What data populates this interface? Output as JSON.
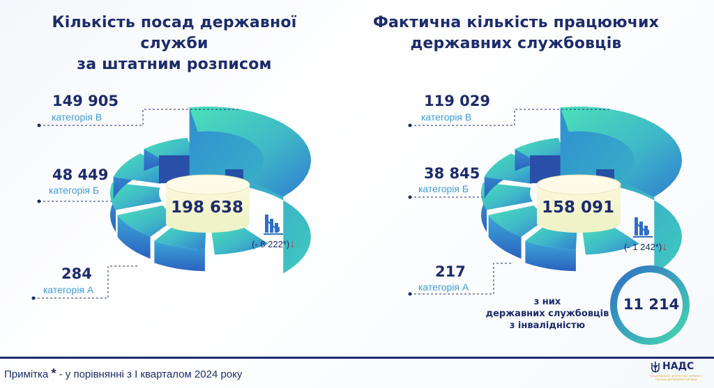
{
  "left": {
    "title_line1": "Кількість посад державної служби",
    "title_line2": "за штатним розписом",
    "total": "198 638",
    "change": "(- 8 222*)",
    "categories": [
      {
        "value": "149 905",
        "label": "категорія В"
      },
      {
        "value": "48 449",
        "label": "категорія Б"
      },
      {
        "value": "284",
        "label": "категорія А"
      }
    ]
  },
  "right": {
    "title_line1": "Фактична кількість працюючих",
    "title_line2": "державних службовців",
    "total": "158 091",
    "change": "(- 1 242*)",
    "categories": [
      {
        "value": "119 029",
        "label": "категорія В"
      },
      {
        "value": "38 845",
        "label": "категорія Б"
      },
      {
        "value": "217",
        "label": "категорія А"
      }
    ],
    "disability_text_line1": "з них",
    "disability_text_line2": "державних службовців",
    "disability_text_line3": "з інвалідністю",
    "disability_value": "11 214"
  },
  "footer": {
    "note_prefix": "Примітка",
    "note_star": "*",
    "note_text": " - у порівнянні з І кварталом 2024 року",
    "logo_name": "НАДС",
    "logo_sub": "НАЦІОНАЛЬНЕ АГЕНТСТВО УКРАЇНИ З ПИТАНЬ ДЕРЖАВНОЇ СЛУЖБИ"
  },
  "colors": {
    "navy": "#1c2b6b",
    "teal": "#36d6b4",
    "blue": "#2f6fc4",
    "light_blue": "#3e9bd6",
    "red": "#d9302c"
  },
  "icons": [
    "bar-chart-down-icon",
    "down-arrow-icon",
    "trident-icon"
  ],
  "chart_data": [
    {
      "type": "pie",
      "title": "Кількість посад державної служби за штатним розписом",
      "total": 198638,
      "categories": [
        "категорія В",
        "категорія Б",
        "категорія А"
      ],
      "values": [
        149905,
        48449,
        284
      ],
      "annotations": [
        "(- 8 222*)"
      ]
    },
    {
      "type": "pie",
      "title": "Фактична кількість працюючих державних службовців",
      "total": 158091,
      "categories": [
        "категорія В",
        "категорія Б",
        "категорія А"
      ],
      "values": [
        119029,
        38845,
        217
      ],
      "annotations": [
        "(- 1 242*)",
        "з них державних службовців з інвалідністю: 11 214"
      ]
    }
  ]
}
